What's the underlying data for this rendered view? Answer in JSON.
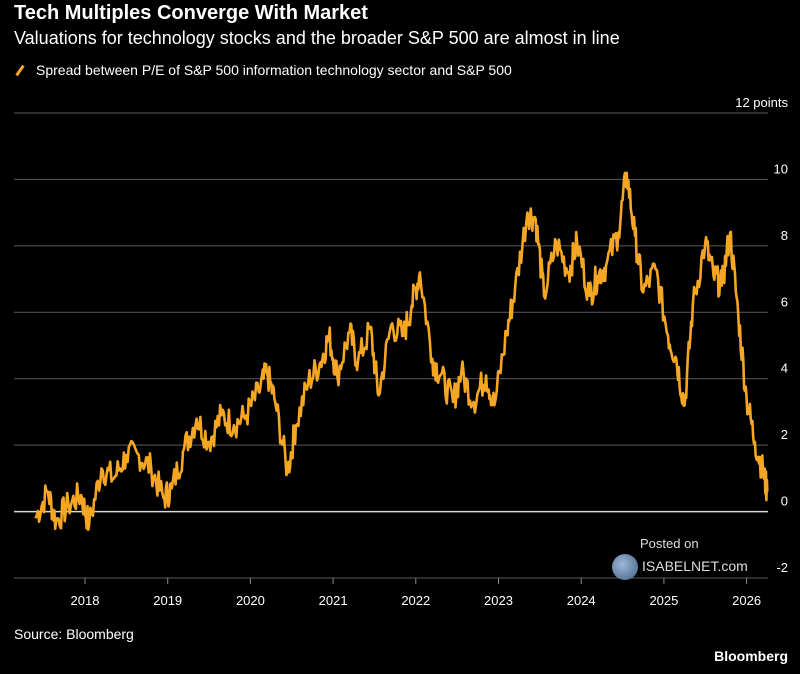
{
  "header": {
    "title": "Tech Multiples Converge With Market",
    "subtitle": "Valuations for technology stocks and the broader S&P 500 are almost in line"
  },
  "legend": {
    "label": "Spread between P/E of S&P 500 information technology sector and S&P 500"
  },
  "footer": {
    "source": "Source: Bloomberg",
    "brand": "Bloomberg"
  },
  "watermark": {
    "posted": "Posted on",
    "site": "ISABELNET.com"
  },
  "colors": {
    "series": "#f5a623",
    "background": "#000000",
    "grid": "#5a5a5a"
  },
  "chart_data": {
    "type": "line",
    "ylim": [
      -2,
      12
    ],
    "xlim": [
      2017.4,
      2026.4
    ],
    "y_ticks": [
      {
        "value": 12,
        "label": "12 points"
      },
      {
        "value": 10,
        "label": "10"
      },
      {
        "value": 8,
        "label": "8"
      },
      {
        "value": 6,
        "label": "6"
      },
      {
        "value": 4,
        "label": "4"
      },
      {
        "value": 2,
        "label": "2"
      },
      {
        "value": 0,
        "label": "0"
      },
      {
        "value": -2,
        "label": "-2"
      }
    ],
    "x_ticks": [
      "2018",
      "2019",
      "2020",
      "2021",
      "2022",
      "2023",
      "2024",
      "2025",
      "2026"
    ],
    "grid": true,
    "legend_position": "top-left",
    "series": [
      {
        "x": [
          2017.4,
          2017.55,
          2017.65,
          2017.8,
          2017.95,
          2018.05,
          2018.2,
          2018.35,
          2018.5,
          2018.65,
          2018.8,
          2018.95,
          2019.05,
          2019.2,
          2019.35,
          2019.5,
          2019.65,
          2019.8,
          2019.95,
          2020.1,
          2020.2,
          2020.3,
          2020.45,
          2020.55,
          2020.7,
          2020.85,
          2020.95,
          2021.05,
          2021.2,
          2021.3,
          2021.45,
          2021.55,
          2021.7,
          2021.85,
          2021.95,
          2022.05,
          2022.2,
          2022.3,
          2022.45,
          2022.55,
          2022.7,
          2022.85,
          2022.95,
          2023.1,
          2023.2,
          2023.35,
          2023.45,
          2023.55,
          2023.7,
          2023.85,
          2023.95,
          2024.1,
          2024.2,
          2024.3,
          2024.45,
          2024.55,
          2024.65,
          2024.75,
          2024.9,
          2025.05,
          2025.15,
          2025.25,
          2025.35,
          2025.5,
          2025.6,
          2025.7,
          2025.8,
          2025.9,
          2026.0,
          2026.1,
          2026.2,
          2026.25
        ],
        "y": [
          -0.2,
          0.6,
          -0.3,
          0.2,
          0.5,
          -0.4,
          1.3,
          1.0,
          1.7,
          1.7,
          1.3,
          0.4,
          0.7,
          1.9,
          2.8,
          2.1,
          2.9,
          2.6,
          2.9,
          3.6,
          4.2,
          3.3,
          1.2,
          2.6,
          3.9,
          4.5,
          5.3,
          4.1,
          5.4,
          4.5,
          5.5,
          3.5,
          5.6,
          5.3,
          6.2,
          7.2,
          4.6,
          4.1,
          3.3,
          4.2,
          3.3,
          4.1,
          3.2,
          5.4,
          6.7,
          9.0,
          8.8,
          6.5,
          8.1,
          7.2,
          8.1,
          6.5,
          7.1,
          7.4,
          8.4,
          10.2,
          8.3,
          6.6,
          7.3,
          5.3,
          4.6,
          3.2,
          6.2,
          8.1,
          7.1,
          6.8,
          8.4,
          5.9,
          3.4,
          2.1,
          1.2,
          0.6
        ]
      }
    ]
  }
}
